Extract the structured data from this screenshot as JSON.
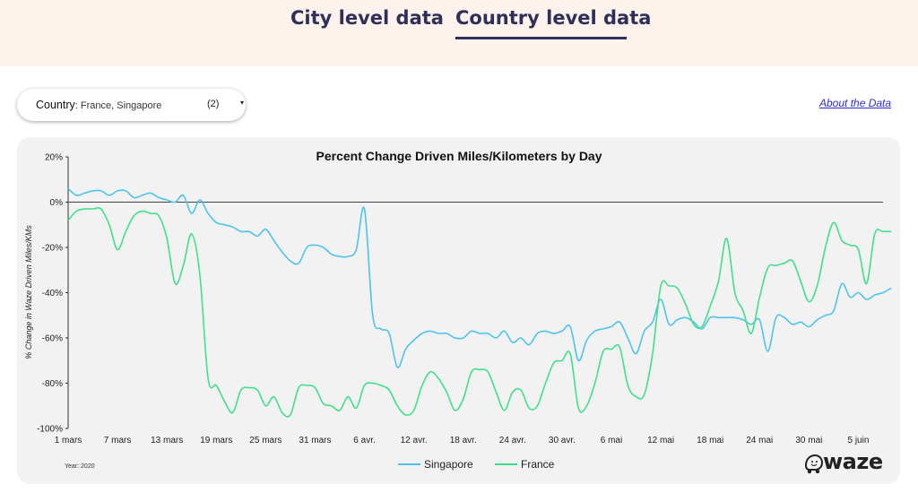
{
  "tabs": {
    "city": "City level data",
    "country": "Country level data"
  },
  "filter": {
    "label": "Country",
    "value": ": France, Singapore",
    "count": "(2)",
    "caret": "▾"
  },
  "about_link": "About the Data",
  "footer": {
    "year": "Year: 2020",
    "logo": "waze"
  },
  "colors": {
    "singapore": "#4fc3f0",
    "france": "#40e08a",
    "zero_line": "#444444"
  },
  "chart_data": {
    "type": "line",
    "title": "Percent Change Driven Miles/Kilometers by Day",
    "xlabel": "",
    "ylabel": "% Change in Waze Driven Miles/KMs",
    "ylim": [
      -100,
      20
    ],
    "yticks": [
      20,
      0,
      -20,
      -40,
      -60,
      -80,
      -100
    ],
    "ytick_labels": [
      "20%",
      "0%",
      "-20%",
      "-40%",
      "-60%",
      "-80%",
      "-100%"
    ],
    "x_start_label": "1 mars",
    "xlim": [
      0,
      99
    ],
    "xticks": [
      0,
      6,
      12,
      18,
      24,
      30,
      36,
      42,
      48,
      54,
      60,
      66,
      72,
      78,
      84,
      90,
      96
    ],
    "xtick_labels": [
      "1 mars",
      "7 mars",
      "13 mars",
      "19 mars",
      "25 mars",
      "31 mars",
      "6 avr.",
      "12 avr.",
      "18 avr.",
      "24 avr.",
      "30 avr.",
      "6 mai",
      "12 mai",
      "18 mai",
      "24 mai",
      "30 mai",
      "5 juin"
    ],
    "legend": "bottom-center",
    "series": [
      {
        "name": "Singapore",
        "color": "#4fc3f0",
        "values": [
          6,
          3,
          4,
          5,
          5,
          3,
          5,
          5,
          2,
          3,
          4,
          2,
          1,
          0,
          3,
          -5,
          1,
          -5,
          -9,
          -10,
          -11,
          -13,
          -13,
          -15,
          -12,
          -17,
          -22,
          -26,
          -27,
          -20,
          -19,
          -20,
          -23,
          -24,
          -24,
          -21,
          -3,
          -50,
          -56,
          -58,
          -73,
          -65,
          -61,
          -58,
          -57,
          -58,
          -58,
          -60,
          -60,
          -57,
          -58,
          -58,
          -60,
          -57,
          -62,
          -60,
          -63,
          -58,
          -57,
          -58,
          -57,
          -55,
          -70,
          -61,
          -57,
          -56,
          -55,
          -53,
          -60,
          -67,
          -57,
          -53,
          -43,
          -54,
          -52,
          -51,
          -53,
          -56,
          -51,
          -51,
          -51,
          -51,
          -52,
          -54,
          -52,
          -66,
          -51,
          -51,
          -54,
          -53,
          -55,
          -52,
          -50,
          -48,
          -36,
          -42,
          -40,
          -43,
          -41,
          -40,
          -38
        ]
      },
      {
        "name": "France",
        "color": "#40e08a",
        "values": [
          -8,
          -4,
          -3,
          -3,
          -3,
          -10,
          -21,
          -13,
          -6,
          -4,
          -5,
          -6,
          -16,
          -36,
          -28,
          -14,
          -32,
          -78,
          -81,
          -88,
          -93,
          -83,
          -82,
          -83,
          -90,
          -86,
          -93,
          -94,
          -82,
          -81,
          -82,
          -89,
          -90,
          -92,
          -86,
          -91,
          -81,
          -80,
          -81,
          -83,
          -90,
          -94,
          -92,
          -81,
          -75,
          -78,
          -84,
          -92,
          -87,
          -75,
          -74,
          -75,
          -84,
          -92,
          -84,
          -83,
          -91,
          -90,
          -80,
          -71,
          -70,
          -67,
          -91,
          -90,
          -80,
          -66,
          -65,
          -64,
          -81,
          -86,
          -85,
          -67,
          -37,
          -37,
          -38,
          -45,
          -54,
          -55,
          -46,
          -35,
          -16,
          -40,
          -48,
          -58,
          -42,
          -29,
          -28,
          -27,
          -26,
          -35,
          -44,
          -37,
          -20,
          -9,
          -17,
          -19,
          -21,
          -36,
          -14,
          -13,
          -13
        ]
      }
    ]
  }
}
